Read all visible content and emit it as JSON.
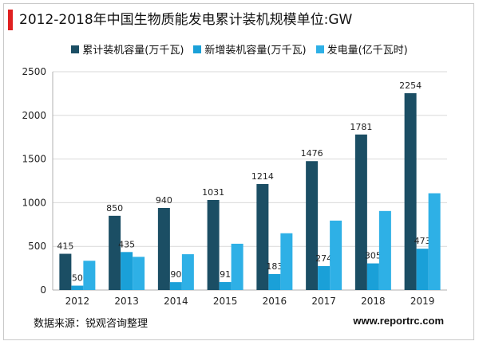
{
  "title": "2012-2018年中国生物质能发电累计装机规模单位:GW",
  "source": "数据来源：锐观咨询整理",
  "website": "www.reportrc.com",
  "colors": {
    "accent": "#e02020",
    "series": [
      "#1b4e64",
      "#1aa0d8",
      "#2eb0e6"
    ],
    "axis": "#b0b0b0",
    "grid": "#d9d9d9"
  },
  "chart_data": {
    "type": "bar",
    "categories": [
      "2012",
      "2013",
      "2014",
      "2015",
      "2016",
      "2017",
      "2018",
      "2019"
    ],
    "series": [
      {
        "name": "累计装机容量(万千瓦)",
        "values": [
          415,
          850,
          940,
          1031,
          1214,
          1476,
          1781,
          2254
        ]
      },
      {
        "name": "新增装机容量(万千瓦)",
        "values": [
          50,
          435,
          90,
          91,
          183,
          274,
          305,
          473
        ]
      },
      {
        "name": "发电量(亿千瓦时)",
        "values": [
          335,
          380,
          410,
          530,
          650,
          795,
          905,
          1108
        ]
      }
    ],
    "data_labels": [
      [
        "415",
        "850",
        "940",
        "1031",
        "1214",
        "1476",
        "1781",
        "2254"
      ],
      [
        "50",
        "435",
        "90",
        "91",
        "183",
        "274",
        "305",
        "473"
      ],
      [
        "",
        "",
        "",
        "",
        "",
        "",
        "",
        ""
      ]
    ],
    "yticks": [
      "0",
      "500",
      "1000",
      "1500",
      "2000",
      "2500"
    ],
    "ylim": [
      0,
      2500
    ],
    "grid": true,
    "legend_position": "top"
  }
}
